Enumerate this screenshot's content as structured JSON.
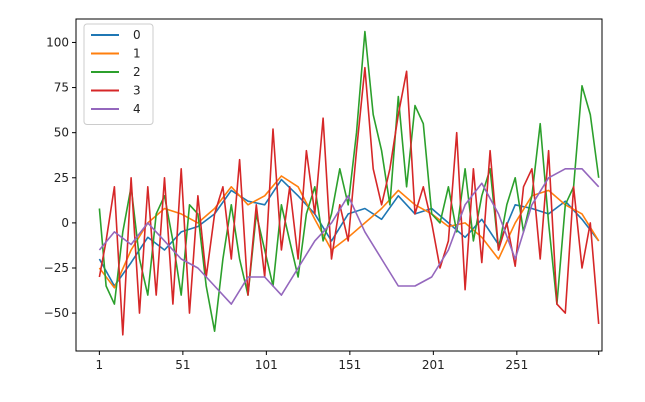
{
  "chart_data": {
    "type": "line",
    "title": "",
    "xlabel": "",
    "ylabel": "",
    "xlim": [
      -13,
      302
    ],
    "ylim": [
      -71,
      113
    ],
    "x_ticks": [
      1,
      51,
      101,
      151,
      201,
      251
    ],
    "x_tick_labels": [
      "1",
      "51",
      "101",
      "151",
      "201",
      "251"
    ],
    "y_ticks": [
      100,
      75,
      50,
      25,
      0,
      -25,
      -50
    ],
    "y_tick_labels": [
      "100",
      "75",
      "50",
      "25",
      "0",
      "−25",
      "−50"
    ],
    "grid": false,
    "legend_position": "top-left",
    "series": [
      {
        "name": "0",
        "color": "#1f77b4",
        "x": [
          1,
          10,
          20,
          30,
          40,
          50,
          60,
          70,
          80,
          90,
          100,
          110,
          120,
          130,
          140,
          150,
          160,
          170,
          180,
          190,
          200,
          210,
          220,
          230,
          240,
          250,
          260,
          270,
          280,
          290,
          300
        ],
        "values": [
          -20,
          -35,
          -22,
          -8,
          -15,
          -5,
          -2,
          5,
          18,
          12,
          10,
          24,
          15,
          5,
          -10,
          5,
          8,
          2,
          15,
          5,
          8,
          0,
          -8,
          2,
          -12,
          10,
          8,
          5,
          12,
          2,
          -10
        ]
      },
      {
        "name": "1",
        "color": "#ff7f0e",
        "x": [
          1,
          10,
          20,
          30,
          40,
          50,
          60,
          70,
          80,
          90,
          100,
          110,
          120,
          130,
          140,
          150,
          160,
          170,
          180,
          190,
          200,
          210,
          220,
          230,
          240,
          250,
          260,
          270,
          280,
          290,
          300
        ],
        "values": [
          -25,
          -36,
          -15,
          0,
          8,
          5,
          0,
          8,
          20,
          10,
          15,
          26,
          20,
          2,
          -15,
          -8,
          0,
          8,
          18,
          10,
          5,
          -2,
          0,
          -8,
          -20,
          0,
          15,
          18,
          10,
          5,
          -10
        ]
      },
      {
        "name": "2",
        "color": "#2ca02c",
        "x": [
          1,
          5,
          10,
          15,
          20,
          25,
          30,
          35,
          40,
          45,
          50,
          55,
          60,
          65,
          70,
          75,
          80,
          85,
          90,
          95,
          100,
          105,
          110,
          115,
          120,
          125,
          130,
          135,
          140,
          145,
          150,
          155,
          160,
          165,
          170,
          175,
          180,
          185,
          190,
          195,
          200,
          205,
          210,
          215,
          220,
          225,
          230,
          235,
          240,
          245,
          250,
          255,
          260,
          265,
          270,
          275,
          280,
          285,
          290,
          295,
          300
        ],
        "values": [
          8,
          -35,
          -45,
          -5,
          20,
          -20,
          -40,
          5,
          15,
          -10,
          -40,
          10,
          5,
          -35,
          -60,
          -20,
          10,
          -20,
          -40,
          5,
          -15,
          -35,
          10,
          -10,
          -30,
          5,
          20,
          -10,
          5,
          30,
          10,
          50,
          106,
          60,
          40,
          10,
          70,
          20,
          65,
          55,
          5,
          0,
          20,
          -5,
          30,
          -10,
          15,
          30,
          -15,
          10,
          25,
          -5,
          15,
          55,
          0,
          -45,
          10,
          20,
          76,
          60,
          25
        ]
      },
      {
        "name": "3",
        "color": "#d62728",
        "x": [
          1,
          5,
          10,
          15,
          20,
          25,
          30,
          35,
          40,
          45,
          50,
          55,
          60,
          65,
          70,
          75,
          80,
          85,
          90,
          95,
          100,
          105,
          110,
          115,
          120,
          125,
          130,
          135,
          140,
          145,
          150,
          155,
          160,
          165,
          170,
          175,
          180,
          185,
          190,
          195,
          200,
          205,
          210,
          215,
          220,
          225,
          230,
          235,
          240,
          245,
          250,
          255,
          260,
          265,
          270,
          275,
          280,
          285,
          290,
          295,
          300
        ],
        "values": [
          -30,
          -10,
          20,
          -62,
          25,
          -50,
          20,
          -40,
          25,
          -45,
          30,
          -50,
          15,
          -30,
          5,
          20,
          -20,
          35,
          -40,
          10,
          -30,
          52,
          -15,
          20,
          -20,
          40,
          5,
          58,
          -20,
          10,
          -10,
          40,
          86,
          30,
          10,
          30,
          60,
          84,
          5,
          20,
          0,
          -25,
          -10,
          50,
          -37,
          30,
          -22,
          40,
          -15,
          0,
          -24,
          20,
          30,
          -20,
          40,
          -45,
          -50,
          20,
          -25,
          0,
          -56
        ]
      },
      {
        "name": "4",
        "color": "#9467bd",
        "x": [
          1,
          10,
          20,
          30,
          40,
          50,
          60,
          70,
          80,
          90,
          100,
          110,
          120,
          130,
          140,
          150,
          160,
          170,
          180,
          190,
          200,
          210,
          220,
          230,
          240,
          250,
          260,
          270,
          280,
          290,
          300
        ],
        "values": [
          -15,
          -5,
          -12,
          0,
          -10,
          -20,
          -25,
          -35,
          -45,
          -30,
          -30,
          -40,
          -25,
          -10,
          0,
          15,
          -5,
          -20,
          -35,
          -35,
          -30,
          -15,
          10,
          22,
          5,
          -20,
          10,
          25,
          30,
          30,
          20
        ]
      }
    ]
  }
}
